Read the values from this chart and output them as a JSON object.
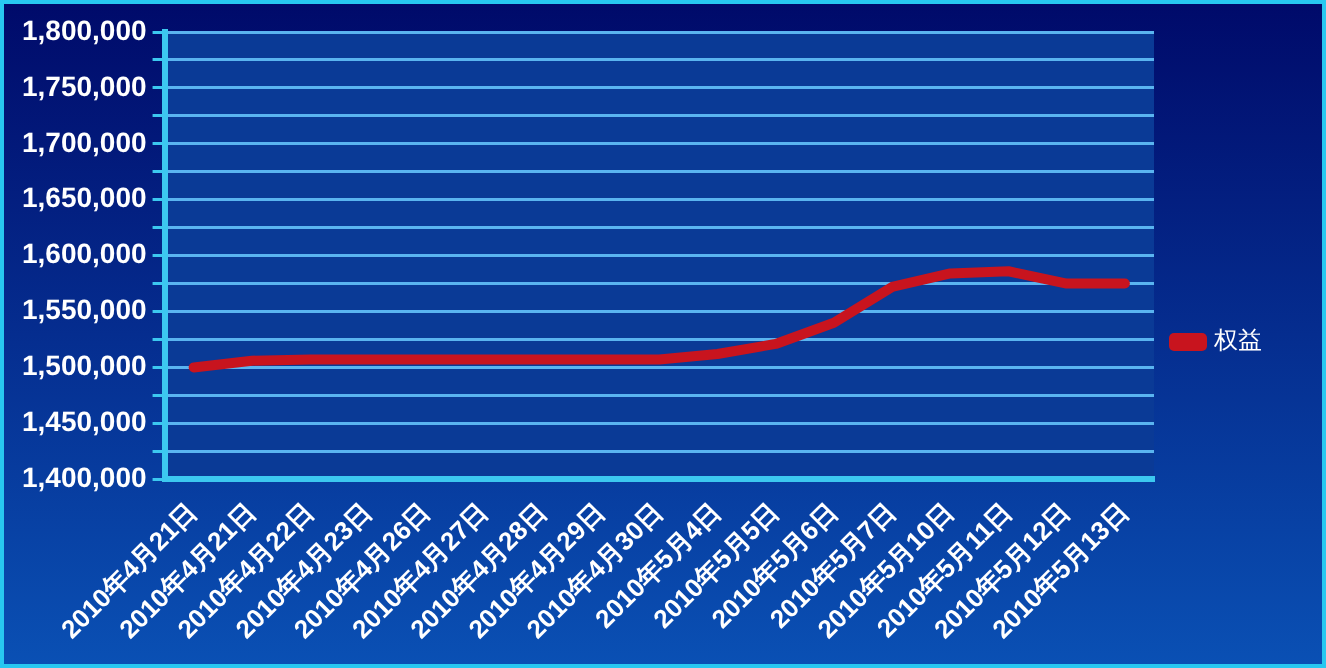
{
  "chart_data": {
    "type": "line",
    "categories": [
      "2010年4月21日",
      "2010年4月21日",
      "2010年4月22日",
      "2010年4月23日",
      "2010年4月26日",
      "2010年4月27日",
      "2010年4月28日",
      "2010年4月29日",
      "2010年4月30日",
      "2010年5月4日",
      "2010年5月5日",
      "2010年5月6日",
      "2010年5月7日",
      "2010年5月10日",
      "2010年5月11日",
      "2010年5月12日",
      "2010年5月13日"
    ],
    "series": [
      {
        "name": "权益",
        "color": "#c8141e",
        "values": [
          1500000,
          1506000,
          1507000,
          1507000,
          1507000,
          1507000,
          1507000,
          1507000,
          1507000,
          1512000,
          1521000,
          1540000,
          1572000,
          1584000,
          1586000,
          1575000,
          1575000
        ]
      }
    ],
    "ylim": [
      1400000,
      1800000
    ],
    "yticks": [
      {
        "value": 1400000,
        "label": "1,400,000"
      },
      {
        "value": 1425000,
        "label": null
      },
      {
        "value": 1450000,
        "label": "1,450,000"
      },
      {
        "value": 1475000,
        "label": null
      },
      {
        "value": 1500000,
        "label": "1,500,000"
      },
      {
        "value": 1525000,
        "label": null
      },
      {
        "value": 1550000,
        "label": "1,550,000"
      },
      {
        "value": 1575000,
        "label": null
      },
      {
        "value": 1600000,
        "label": "1,600,000"
      },
      {
        "value": 1625000,
        "label": null
      },
      {
        "value": 1650000,
        "label": "1,650,000"
      },
      {
        "value": 1675000,
        "label": null
      },
      {
        "value": 1700000,
        "label": "1,700,000"
      },
      {
        "value": 1725000,
        "label": null
      },
      {
        "value": 1750000,
        "label": "1,750,000"
      },
      {
        "value": 1775000,
        "label": null
      },
      {
        "value": 1800000,
        "label": "1,800,000"
      }
    ],
    "grid": "y",
    "legend": "right",
    "marker": "none",
    "line_style": "solid"
  }
}
